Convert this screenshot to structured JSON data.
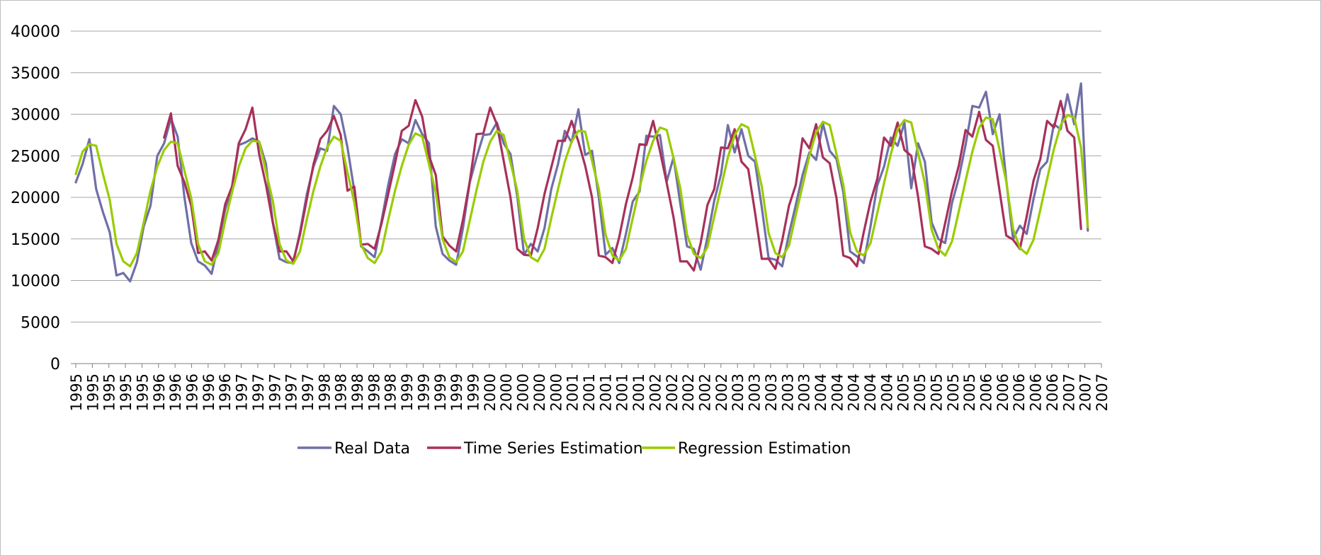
{
  "chart_data": {
    "type": "line",
    "title": "",
    "xlabel": "",
    "ylabel": "",
    "ylim": [
      0,
      40000
    ],
    "y_ticks": [
      "0",
      "5000",
      "10000",
      "15000",
      "20000",
      "25000",
      "30000",
      "35000",
      "40000"
    ],
    "x_tick_labels": [
      "1995",
      "1995",
      "1995",
      "1995",
      "1995",
      "1996",
      "1996",
      "1996",
      "1996",
      "1996",
      "1997",
      "1997",
      "1997",
      "1997",
      "1997",
      "1998",
      "1998",
      "1998",
      "1998",
      "1998",
      "1999",
      "1999",
      "1999",
      "1999",
      "1999",
      "2000",
      "2000",
      "2000",
      "2000",
      "2000",
      "2001",
      "2001",
      "2001",
      "2001",
      "2001",
      "2002",
      "2002",
      "2002",
      "2002",
      "2002",
      "2003",
      "2003",
      "2003",
      "2003",
      "2003",
      "2004",
      "2004",
      "2004",
      "2004",
      "2004",
      "2005",
      "2005",
      "2005",
      "2005",
      "2005",
      "2006",
      "2006",
      "2006",
      "2006",
      "2006",
      "2007",
      "2007",
      "2007"
    ],
    "x_range": [
      0,
      151
    ],
    "grid": true,
    "legend_position": "bottom",
    "series": [
      {
        "name": "Real Data",
        "color": "#6F6FA8",
        "start": 0,
        "values": [
          21800,
          24000,
          27000,
          21000,
          18200,
          15800,
          10600,
          10900,
          9900,
          12200,
          16500,
          19000,
          25000,
          26500,
          29500,
          27300,
          20000,
          14500,
          12300,
          11800,
          10800,
          14500,
          18600,
          21200,
          26300,
          26600,
          27100,
          26700,
          24000,
          17000,
          12600,
          12200,
          12100,
          15800,
          20300,
          23700,
          25900,
          25600,
          31000,
          30000,
          26000,
          20800,
          14100,
          13500,
          12800,
          17100,
          21500,
          25200,
          27000,
          26500,
          29300,
          27600,
          26500,
          16500,
          13200,
          12400,
          11900,
          16300,
          21800,
          24800,
          27500,
          27600,
          29000,
          26500,
          25200,
          20100,
          13100,
          14400,
          13500,
          16300,
          21000,
          24000,
          28000,
          26600,
          30600,
          25100,
          25600,
          20000,
          13100,
          13900,
          12100,
          15600,
          19500,
          20700,
          27400,
          27300,
          27500,
          21900,
          24800,
          19200,
          14100,
          13800,
          11300,
          15200,
          19600,
          22800,
          28700,
          25400,
          28200,
          25000,
          24300,
          18800,
          12700,
          12500,
          11700,
          15600,
          19100,
          22700,
          25400,
          24500,
          28900,
          25600,
          24600,
          20600,
          13500,
          12900,
          12100,
          16500,
          21400,
          23700,
          27200,
          26200,
          29000,
          21100,
          26500,
          24300,
          17000,
          15000,
          14500,
          19300,
          22300,
          26300,
          31000,
          30800,
          32700,
          27600,
          30000,
          22000,
          15000,
          16600,
          15600,
          19800,
          23400,
          24300,
          28800,
          28200,
          32400,
          28800,
          33700,
          16000
        ],
        "data_name": "series-real-data"
      },
      {
        "name": "Time Series Estimation",
        "color": "#A8305A",
        "start": 13,
        "values": [
          27200,
          30100,
          23800,
          21800,
          19000,
          13300,
          13500,
          12400,
          14900,
          19200,
          21300,
          26500,
          28200,
          30800,
          25200,
          21500,
          17000,
          13500,
          13500,
          12300,
          15500,
          19700,
          24000,
          27000,
          28000,
          29800,
          27500,
          20800,
          21300,
          14300,
          14400,
          13800,
          16800,
          20400,
          24100,
          28000,
          28600,
          31700,
          29700,
          25000,
          22700,
          15300,
          14200,
          13500,
          17300,
          21900,
          27600,
          27700,
          30800,
          28800,
          24400,
          20000,
          13800,
          13100,
          13000,
          16300,
          20400,
          23600,
          26800,
          26800,
          29200,
          26700,
          23800,
          20000,
          13000,
          12800,
          12100,
          15200,
          19200,
          22400,
          26400,
          26300,
          29200,
          25600,
          21700,
          17600,
          12300,
          12300,
          11200,
          14500,
          19100,
          21000,
          26000,
          25900,
          28200,
          24300,
          23400,
          18200,
          12600,
          12600,
          11400,
          14800,
          19000,
          21500,
          27100,
          25900,
          28800,
          24800,
          24100,
          19900,
          13000,
          12700,
          11700,
          15800,
          19500,
          22200,
          27200,
          26200,
          29000,
          25700,
          25000,
          20100,
          14100,
          13800,
          13200,
          16900,
          20700,
          23800,
          28100,
          27300,
          30300,
          26900,
          26200,
          20800,
          15400,
          14900,
          13800,
          17700,
          22000,
          24600,
          29200,
          28400,
          31600,
          28000,
          27200,
          16200
        ],
        "data_name": "series-time-series-estimation"
      },
      {
        "name": "Regression Estimation",
        "color": "#99CC00",
        "start": 0,
        "values": [
          22800,
          25500,
          26400,
          26200,
          22800,
          19700,
          14400,
          12300,
          11700,
          13300,
          17000,
          20800,
          23700,
          25700,
          26700,
          26500,
          23200,
          19900,
          14400,
          12300,
          11900,
          13300,
          17200,
          20600,
          23700,
          25900,
          26800,
          26700,
          23100,
          19600,
          14400,
          12400,
          12000,
          13500,
          17300,
          20800,
          23700,
          26000,
          27300,
          26800,
          23000,
          19400,
          14300,
          12700,
          12100,
          13500,
          17300,
          20800,
          23800,
          26300,
          27700,
          27300,
          24000,
          20600,
          15000,
          12800,
          12200,
          13500,
          17200,
          20900,
          24300,
          26700,
          28000,
          27500,
          24200,
          20800,
          15000,
          12800,
          12300,
          13800,
          17500,
          21000,
          24300,
          26700,
          28000,
          27900,
          24400,
          21000,
          15500,
          13000,
          12400,
          13800,
          17500,
          21100,
          24400,
          26800,
          28400,
          28100,
          24700,
          21100,
          15500,
          13200,
          12700,
          14000,
          17700,
          21200,
          24800,
          27500,
          28800,
          28400,
          25000,
          21300,
          15700,
          13300,
          12800,
          14200,
          17900,
          21400,
          25000,
          27800,
          29100,
          28700,
          25200,
          21500,
          15800,
          13500,
          13000,
          14500,
          18100,
          21700,
          25200,
          28200,
          29300,
          29000,
          25400,
          21700,
          16100,
          13800,
          13000,
          14700,
          18300,
          22000,
          25500,
          28400,
          29600,
          29400,
          25700,
          21900,
          16200,
          13900,
          13200,
          14900,
          18500,
          22200,
          25800,
          28700,
          29900,
          29600,
          26000,
          16400
        ],
        "data_name": "series-regression-estimation"
      }
    ]
  },
  "colors": {
    "gridline": "#a6a6a6",
    "axis": "#808080",
    "frame": "#bfbfbf"
  }
}
